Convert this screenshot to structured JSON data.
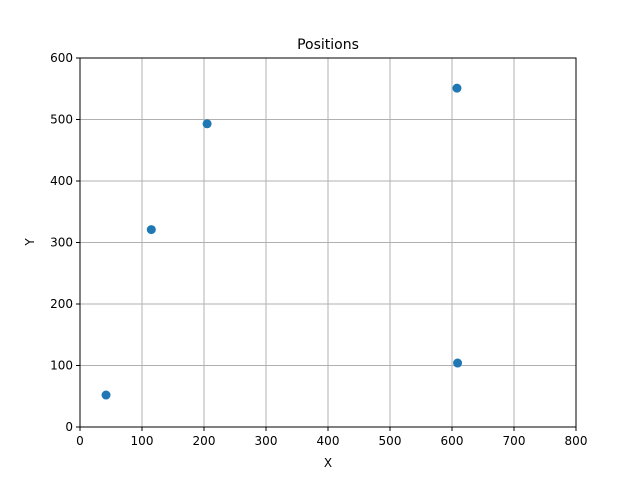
{
  "chart_data": {
    "type": "scatter",
    "title": "Positions",
    "xlabel": "X",
    "ylabel": "Y",
    "xlim": [
      0,
      800
    ],
    "ylim": [
      0,
      600
    ],
    "xticks": [
      "0",
      "100",
      "200",
      "300",
      "400",
      "500",
      "600",
      "700",
      "800"
    ],
    "yticks": [
      "0",
      "100",
      "200",
      "300",
      "400",
      "500",
      "600"
    ],
    "grid": true,
    "marker_color": "#1f77b4",
    "points": [
      {
        "x": 42,
        "y": 52
      },
      {
        "x": 115,
        "y": 321
      },
      {
        "x": 205,
        "y": 493
      },
      {
        "x": 608,
        "y": 551
      },
      {
        "x": 609,
        "y": 104
      }
    ]
  }
}
